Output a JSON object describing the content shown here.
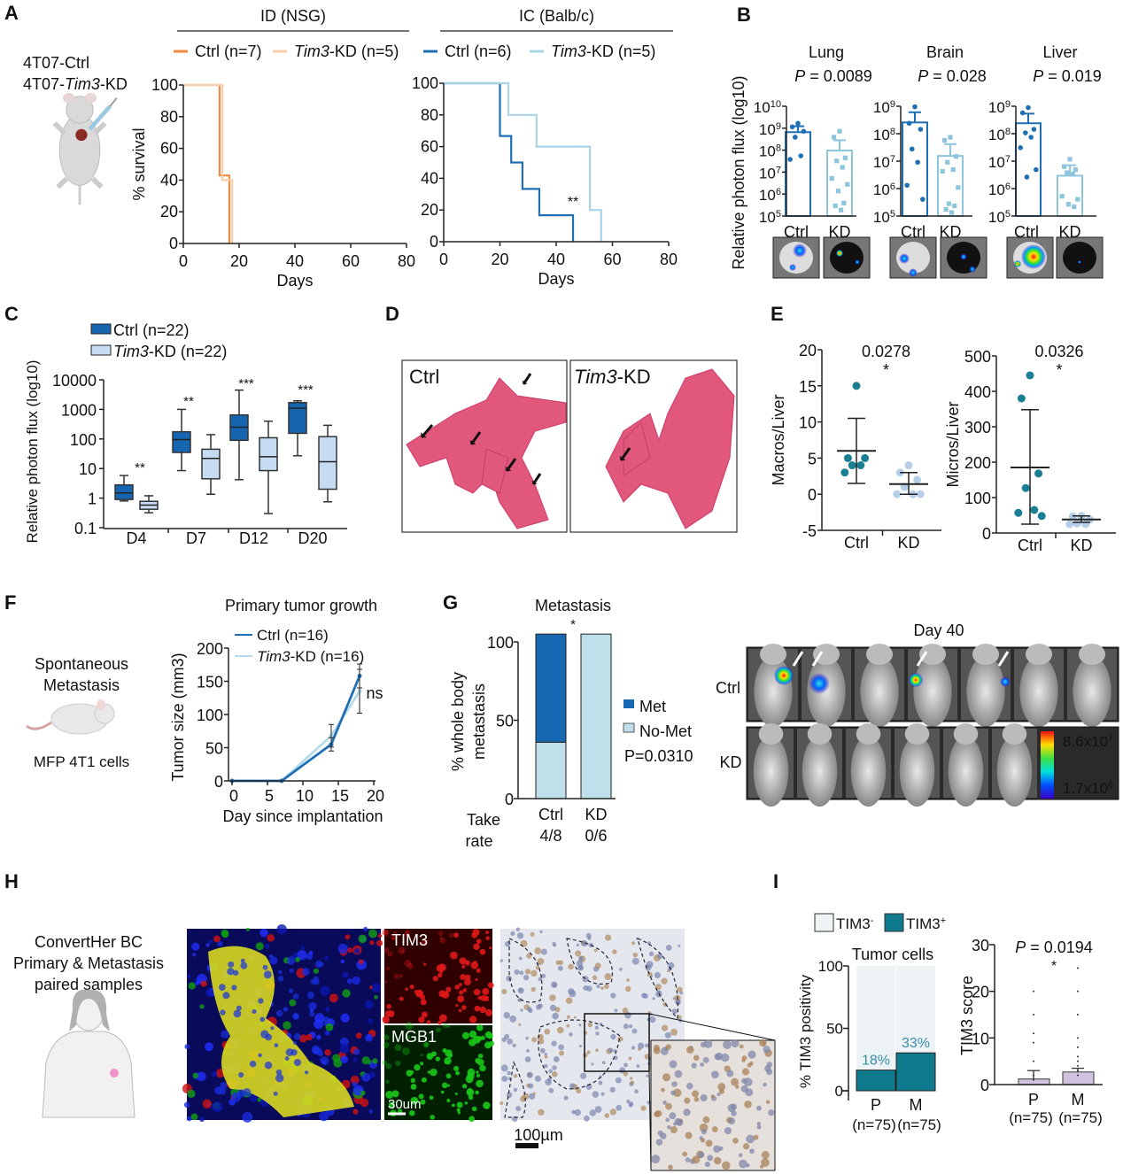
{
  "panel_a": {
    "label": "A",
    "cell_line_ctrl": "4T07-Ctrl",
    "cell_line_kd_a": "4T07-",
    "cell_line_kd_b": "Tim3",
    "cell_line_kd_c": "-KD"
  },
  "panel_b": {
    "label": "B",
    "ylabel": "Relative photon flux (log10)"
  },
  "panel_c": {
    "label": "C"
  },
  "panel_d": {
    "label": "D",
    "ctrl": "Ctrl",
    "kd_italic": "Tim3",
    "kd_rest": "-KD"
  },
  "panel_e": {
    "label": "E"
  },
  "panel_f": {
    "label": "F",
    "model_line1": "Spontaneous",
    "model_line2": "Metastasis",
    "cells": "MFP 4T1 cells"
  },
  "panel_g": {
    "label": "G",
    "day": "Day 40",
    "row_ctrl": "Ctrl",
    "row_kd": "KD",
    "scale_max_mant": "8.6x10",
    "scale_max_exp": "7",
    "scale_min_mant": "1.7x10",
    "scale_min_exp": "6"
  },
  "panel_h": {
    "label": "H",
    "cohort_line1": "ConvertHer BC",
    "cohort_line2": "Primary & Metastasis",
    "cohort_line3": "paired samples",
    "tim3": "TIM3",
    "mgb1": "MGB1",
    "scale_if": "30um",
    "scale_ihc": "100µm"
  },
  "panel_i": {
    "label": "I"
  },
  "chart_data": [
    {
      "panel": "A",
      "type": "line",
      "title": "ID (NSG)",
      "xlabel": "Days",
      "ylabel": "% survival",
      "xlim": [
        0,
        80
      ],
      "ylim": [
        0,
        100
      ],
      "xticks": [
        "0",
        "20",
        "40",
        "60",
        "80"
      ],
      "yticks": [
        "0",
        "20",
        "40",
        "60",
        "80",
        "100"
      ],
      "series": [
        {
          "name_italic": "",
          "name_rest": "Ctrl (n=7)",
          "color": "#ef8a3e",
          "steps": [
            [
              0,
              100
            ],
            [
              13,
              100
            ],
            [
              13,
              42.9
            ],
            [
              16.5,
              42.9
            ],
            [
              16.5,
              0
            ]
          ]
        },
        {
          "name_italic": "Tim3",
          "name_rest": "-KD (n=5)",
          "color": "#f8cfaa",
          "steps": [
            [
              0,
              100
            ],
            [
              14,
              100
            ],
            [
              14,
              40
            ],
            [
              17.5,
              40
            ],
            [
              17.5,
              0
            ]
          ]
        }
      ]
    },
    {
      "panel": "A",
      "type": "line",
      "title": "IC (Balb/c)",
      "xlabel": "Days",
      "xlim": [
        0,
        80
      ],
      "ylim": [
        0,
        100
      ],
      "annotation": "**",
      "xticks": [
        "0",
        "20",
        "40",
        "60",
        "80"
      ],
      "yticks": [
        "0",
        "20",
        "40",
        "60",
        "80",
        "100"
      ],
      "series": [
        {
          "name_italic": "",
          "name_rest": "Ctrl (n=6)",
          "color": "#1f6fb4",
          "steps": [
            [
              0,
              100
            ],
            [
              20,
              100
            ],
            [
              20,
              66.7
            ],
            [
              24,
              66.7
            ],
            [
              24,
              50
            ],
            [
              28,
              50
            ],
            [
              28,
              33.3
            ],
            [
              34,
              33.3
            ],
            [
              34,
              16.7
            ],
            [
              46,
              16.7
            ],
            [
              46,
              0
            ]
          ]
        },
        {
          "name_italic": "Tim3",
          "name_rest": "-KD (n=5)",
          "color": "#a8d4e6",
          "steps": [
            [
              0,
              100
            ],
            [
              23,
              100
            ],
            [
              23,
              80
            ],
            [
              33,
              80
            ],
            [
              33,
              60
            ],
            [
              52,
              60
            ],
            [
              52,
              20
            ],
            [
              56,
              20
            ],
            [
              56,
              0
            ]
          ]
        }
      ]
    },
    {
      "panel": "B",
      "type": "bar",
      "title": "Lung",
      "p_label": "P",
      "p_value": " = 0.0089",
      "yscale": "log10",
      "ylim_log10": [
        5,
        10
      ],
      "tick_base": "10",
      "ytick_exponents": [
        "5",
        "6",
        "7",
        "8",
        "9",
        "10"
      ],
      "categories": [
        "Ctrl",
        "KD"
      ],
      "mean_log10": [
        8.82,
        7.98
      ],
      "error_upper_log10": [
        9.09,
        8.45
      ],
      "points_log10": [
        [
          9.22,
          9.06,
          8.86,
          8.59,
          7.74,
          7.58
        ],
        [
          8.86,
          8.59,
          7.65,
          7.51,
          7.22,
          6.71,
          6.44,
          6.14,
          5.59,
          5.46,
          5.27
        ]
      ]
    },
    {
      "panel": "B",
      "type": "bar",
      "title": "Brain",
      "p_label": "P",
      "p_value": " = 0.028",
      "yscale": "log10",
      "ylim_log10": [
        5,
        9
      ],
      "tick_base": "10",
      "ytick_exponents": [
        "5",
        "6",
        "7",
        "8",
        "9"
      ],
      "categories": [
        "Ctrl",
        "KD"
      ],
      "mean_log10": [
        8.41,
        7.19
      ],
      "error_upper_log10": [
        8.78,
        7.62
      ],
      "points_log10": [
        [
          8.98,
          8.38,
          8.16,
          7.44,
          6.96,
          6.12,
          5.61
        ],
        [
          7.87,
          7.76,
          7.17,
          6.96,
          6.69,
          6.63,
          6.04,
          5.45,
          5.37,
          5.24,
          5.13
        ]
      ]
    },
    {
      "panel": "B",
      "type": "bar",
      "title": "Liver",
      "p_label": "P",
      "p_value": " = 0.019",
      "yscale": "log10",
      "ylim_log10": [
        5,
        9
      ],
      "tick_base": "10",
      "ytick_exponents": [
        "5",
        "6",
        "7",
        "8",
        "9"
      ],
      "categories": [
        "Ctrl",
        "KD"
      ],
      "mean_log10": [
        8.38,
        6.47
      ],
      "error_upper_log10": [
        8.73,
        6.85
      ],
      "points_log10": [
        [
          8.95,
          8.76,
          8.16,
          8.03,
          7.87,
          7.49,
          6.69,
          6.42
        ],
        [
          7.07,
          6.8,
          6.69,
          6.58,
          6.53,
          5.72,
          5.61,
          5.43,
          5.34
        ]
      ]
    },
    {
      "panel": "C",
      "type": "box",
      "ylabel": "Relative photon flux (log10)",
      "yscale": "log10",
      "ylim": [
        0.1,
        10000
      ],
      "yticks": [
        "0.1",
        "1",
        "10",
        "100",
        "1000",
        "10000"
      ],
      "categories": [
        "D4",
        "D7",
        "D12",
        "D20"
      ],
      "significance": [
        "**",
        "**",
        "***",
        "***"
      ],
      "series": [
        {
          "name_italic": "",
          "name_rest": "Ctrl (n=22)",
          "color": "#1565b0",
          "boxes": [
            [
              0.8,
              0.9,
              1.5,
              2.8,
              5.8
            ],
            [
              8.5,
              35,
              95,
              175,
              1000
            ],
            [
              4.2,
              90,
              250,
              650,
              4500
            ],
            [
              27,
              155,
              1100,
              1700,
              1950
            ]
          ]
        },
        {
          "name_italic": "Tim3",
          "name_rest": "-KD (n=22)",
          "color": "#c6dcf3",
          "boxes": [
            [
              0.32,
              0.42,
              0.58,
              0.78,
              1.2
            ],
            [
              1.35,
              4.5,
              22,
              45,
              140
            ],
            [
              0.3,
              8.5,
              25,
              110,
              400
            ],
            [
              0.75,
              2,
              17,
              120,
              290
            ]
          ]
        }
      ]
    },
    {
      "panel": "E",
      "type": "scatter",
      "ylabel": "Macros/Liver",
      "ylim": [
        -5,
        20
      ],
      "yticks": [
        "-5",
        "0",
        "5",
        "10",
        "15",
        "20"
      ],
      "categories": [
        "Ctrl",
        "KD"
      ],
      "p_value": "0.0278",
      "significance": "*",
      "points": [
        [
          15,
          5,
          5,
          4,
          4,
          3
        ],
        [
          4,
          3,
          2,
          1,
          0,
          0,
          0
        ]
      ],
      "mean": [
        6,
        1.4
      ],
      "sd_low": [
        1.5,
        0
      ],
      "sd_high": [
        10.5,
        3
      ]
    },
    {
      "panel": "E",
      "type": "scatter",
      "ylabel": "Micros/Liver",
      "ylim": [
        0,
        500
      ],
      "yticks": [
        "0",
        "100",
        "200",
        "300",
        "400",
        "500"
      ],
      "categories": [
        "Ctrl",
        "KD"
      ],
      "p_value": "0.0326",
      "significance": "*",
      "points": [
        [
          445,
          380,
          168,
          127,
          65,
          57,
          48
        ],
        [
          48,
          47,
          38,
          27,
          25,
          25
        ]
      ],
      "mean": [
        185,
        38
      ],
      "sd_low": [
        25,
        30
      ],
      "sd_high": [
        348,
        48
      ]
    },
    {
      "panel": "F",
      "type": "line",
      "title": "Primary tumor growth",
      "xlabel": "Day since implantation",
      "ylabel": "Tumor size (mm3)",
      "xlim": [
        0,
        20
      ],
      "ylim": [
        0,
        200
      ],
      "xticks": [
        "0",
        "5",
        "10",
        "15",
        "20"
      ],
      "yticks": [
        "0",
        "50",
        "100",
        "150",
        "200"
      ],
      "annotation": "ns",
      "series": [
        {
          "name_italic": "",
          "name_rest": "Ctrl (n=16)",
          "color": "#1f6fb4",
          "x": [
            0,
            7,
            14,
            18
          ],
          "y": [
            0,
            0,
            55,
            158
          ],
          "err": [
            0,
            0,
            10,
            18
          ]
        },
        {
          "name_italic": "Tim3",
          "name_rest": "-KD (n=16)",
          "color": "#b5dbea",
          "x": [
            0,
            7,
            14,
            18
          ],
          "y": [
            0,
            0,
            68,
            135
          ],
          "err": [
            0,
            0,
            17,
            33
          ]
        }
      ]
    },
    {
      "panel": "G",
      "type": "bar",
      "stacked": true,
      "title": "Metastasis",
      "ylabel_line1": "% whole body",
      "ylabel_line2": "metastasis",
      "ylim": [
        0,
        100
      ],
      "yticks": [
        "0",
        "50",
        "100"
      ],
      "categories": [
        "Ctrl",
        "KD"
      ],
      "significance": "*",
      "series": [
        {
          "name": "No-Met",
          "color": "#bfe0ea",
          "values": [
            36,
            105
          ]
        },
        {
          "name": "Met",
          "color": "#1668b2",
          "values": [
            69,
            0
          ]
        }
      ],
      "p_value": "P=0.0310",
      "take_rate_line1": "Take",
      "take_rate_line2": "rate",
      "take_rate": [
        "4/8",
        "0/6"
      ]
    },
    {
      "panel": "I",
      "type": "bar",
      "stacked": true,
      "title": "Tumor cells",
      "ylabel": "% TIM3 positivity",
      "ylim": [
        0,
        100
      ],
      "yticks": [
        "0",
        "50",
        "100"
      ],
      "categories": [
        "P",
        "M"
      ],
      "category_n": [
        "(n=75)",
        "(n=75)"
      ],
      "legend": [
        {
          "base": "TIM3",
          "sup": "-",
          "color": "#eef3f6"
        },
        {
          "base": "TIM3",
          "sup": "+",
          "color": "#0f7a8e"
        }
      ],
      "tim3_positive_pct": [
        18,
        33
      ],
      "value_labels": [
        "18%",
        "33%"
      ]
    },
    {
      "panel": "I",
      "type": "bar",
      "ylabel": "TIM3 score",
      "ylim": [
        0,
        30
      ],
      "yticks": [
        "0",
        "10",
        "20",
        "30"
      ],
      "categories": [
        "P",
        "M"
      ],
      "category_n": [
        "(n=75)",
        "(n=75)"
      ],
      "p_label": "P",
      "p_value": " = 0.0194",
      "significance": "*",
      "mean": [
        1.2,
        2.7
      ],
      "error_upper": [
        3.0,
        3.5
      ],
      "color": "#cfc3e0",
      "points": [
        [
          20,
          15,
          11,
          9,
          5,
          2,
          1
        ],
        [
          25,
          20,
          15,
          10,
          8,
          6,
          5,
          4,
          3,
          2
        ]
      ]
    }
  ]
}
